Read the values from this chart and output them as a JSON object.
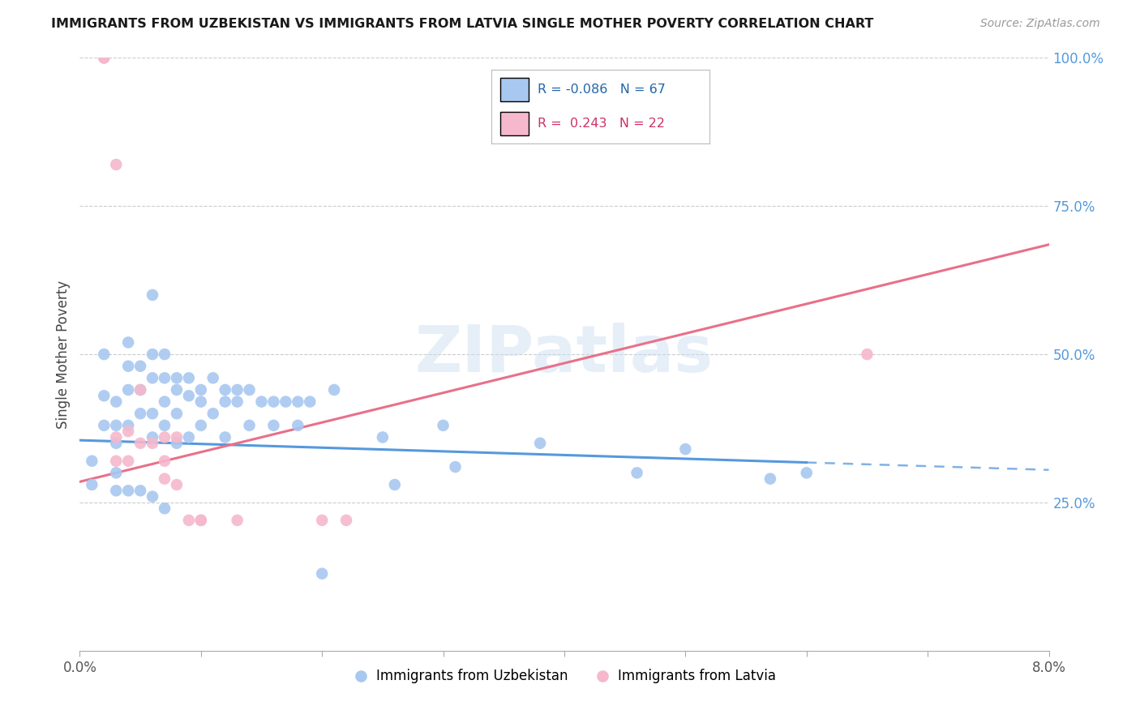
{
  "title": "IMMIGRANTS FROM UZBEKISTAN VS IMMIGRANTS FROM LATVIA SINGLE MOTHER POVERTY CORRELATION CHART",
  "source": "Source: ZipAtlas.com",
  "ylabel": "Single Mother Poverty",
  "xlim": [
    0.0,
    0.08
  ],
  "ylim": [
    0.0,
    1.0
  ],
  "x_ticks": [
    0.0,
    0.01,
    0.02,
    0.03,
    0.04,
    0.05,
    0.06,
    0.07,
    0.08
  ],
  "x_tick_labels": [
    "0.0%",
    "",
    "",
    "",
    "",
    "",
    "",
    "",
    "8.0%"
  ],
  "y_ticks_right": [
    0.25,
    0.5,
    0.75,
    1.0
  ],
  "y_tick_labels_right": [
    "25.0%",
    "50.0%",
    "75.0%",
    "100.0%"
  ],
  "R_uzbekistan": -0.086,
  "N_uzbekistan": 67,
  "R_latvia": 0.243,
  "N_latvia": 22,
  "color_uzbekistan": "#a8c8f0",
  "color_latvia": "#f5b8cc",
  "trend_uzbekistan": "#5599dd",
  "trend_latvia": "#e8708a",
  "watermark": "ZIPatlas",
  "uzbekistan_x": [
    0.001,
    0.001,
    0.002,
    0.002,
    0.002,
    0.003,
    0.003,
    0.003,
    0.003,
    0.003,
    0.004,
    0.004,
    0.004,
    0.004,
    0.004,
    0.005,
    0.005,
    0.005,
    0.005,
    0.006,
    0.006,
    0.006,
    0.006,
    0.006,
    0.006,
    0.007,
    0.007,
    0.007,
    0.007,
    0.007,
    0.008,
    0.008,
    0.008,
    0.008,
    0.009,
    0.009,
    0.009,
    0.01,
    0.01,
    0.01,
    0.011,
    0.011,
    0.012,
    0.012,
    0.012,
    0.013,
    0.013,
    0.014,
    0.014,
    0.015,
    0.016,
    0.016,
    0.017,
    0.018,
    0.018,
    0.019,
    0.02,
    0.021,
    0.025,
    0.026,
    0.03,
    0.031,
    0.038,
    0.046,
    0.05,
    0.057,
    0.06
  ],
  "uzbekistan_y": [
    0.32,
    0.28,
    0.5,
    0.43,
    0.38,
    0.42,
    0.38,
    0.35,
    0.3,
    0.27,
    0.52,
    0.48,
    0.44,
    0.38,
    0.27,
    0.48,
    0.44,
    0.4,
    0.27,
    0.6,
    0.5,
    0.46,
    0.4,
    0.36,
    0.26,
    0.5,
    0.46,
    0.42,
    0.38,
    0.24,
    0.46,
    0.44,
    0.4,
    0.35,
    0.46,
    0.43,
    0.36,
    0.44,
    0.42,
    0.38,
    0.46,
    0.4,
    0.44,
    0.42,
    0.36,
    0.44,
    0.42,
    0.44,
    0.38,
    0.42,
    0.42,
    0.38,
    0.42,
    0.42,
    0.38,
    0.42,
    0.13,
    0.44,
    0.36,
    0.28,
    0.38,
    0.31,
    0.35,
    0.3,
    0.34,
    0.29,
    0.3
  ],
  "latvia_x": [
    0.002,
    0.002,
    0.003,
    0.003,
    0.003,
    0.004,
    0.004,
    0.005,
    0.005,
    0.006,
    0.007,
    0.007,
    0.007,
    0.008,
    0.008,
    0.009,
    0.01,
    0.01,
    0.013,
    0.02,
    0.022,
    0.065
  ],
  "latvia_y": [
    1.0,
    1.0,
    0.82,
    0.36,
    0.32,
    0.37,
    0.32,
    0.44,
    0.35,
    0.35,
    0.36,
    0.32,
    0.29,
    0.36,
    0.28,
    0.22,
    0.22,
    0.22,
    0.22,
    0.22,
    0.22,
    0.5
  ],
  "trend_uz_x0": 0.0,
  "trend_uz_x1": 0.08,
  "trend_uz_y0": 0.355,
  "trend_uz_y1": 0.305,
  "trend_uz_solid_end": 0.06,
  "trend_lv_x0": 0.0,
  "trend_lv_x1": 0.08,
  "trend_lv_y0": 0.285,
  "trend_lv_y1": 0.685
}
